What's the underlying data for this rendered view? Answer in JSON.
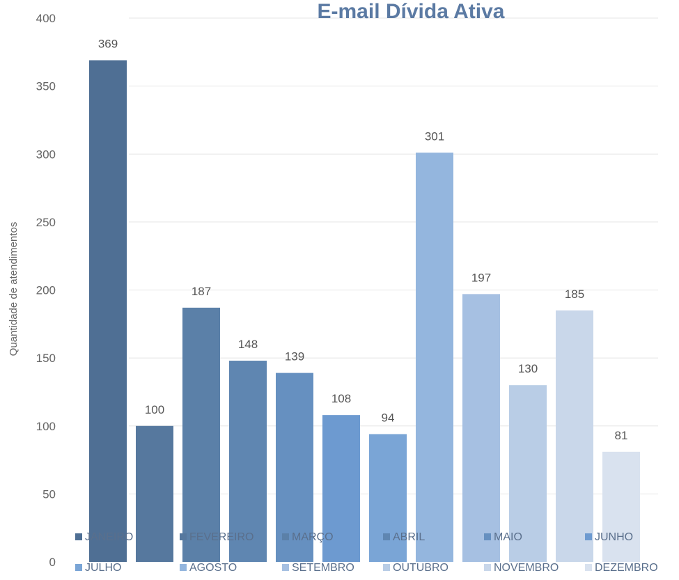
{
  "chart_data": {
    "type": "bar",
    "title": "E-mail Dívida Ativa",
    "xlabel": "",
    "ylabel": "Quantidade de atendimentos",
    "ylim": [
      0,
      400
    ],
    "yticks": [
      0,
      50,
      100,
      150,
      200,
      250,
      300,
      350,
      400
    ],
    "grid": true,
    "legend_position": "bottom",
    "categories": [
      "JANEIRO",
      "FEVEREIRO",
      "MARÇO",
      "ABRIL",
      "MAIO",
      "JUNHO",
      "JULHO",
      "AGOSTO",
      "SETEMBRO",
      "OUTUBRO",
      "NOVEMBRO",
      "DEZEMBRO"
    ],
    "values": [
      369,
      100,
      187,
      148,
      139,
      108,
      94,
      301,
      197,
      130,
      185,
      81
    ],
    "colors": [
      "#4f6f94",
      "#56789e",
      "#5b80a8",
      "#5f86b1",
      "#6690c0",
      "#6d9ad0",
      "#7aa5d6",
      "#94b6de",
      "#a6c0e2",
      "#b9cde6",
      "#c9d7ea",
      "#d9e2ef"
    ]
  }
}
